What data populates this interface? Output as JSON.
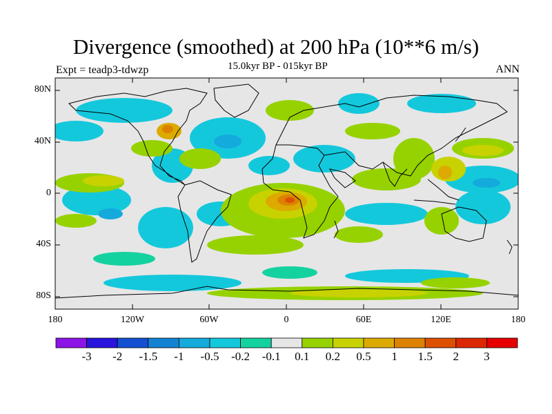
{
  "title": "Divergence (smoothed) at 200 hPa (10**6 m/s)",
  "subtitle": "15.0kyr BP - 015kyr BP",
  "left_label": "Expt = teadp3-tdwzp",
  "right_label": "ANN",
  "map": {
    "projection": "cylindrical-equidistant",
    "lon_range": [
      -180,
      180
    ],
    "lat_range": [
      -90,
      90
    ],
    "y_ticks": [
      "80N",
      "40N",
      "0",
      "40S",
      "80S"
    ],
    "x_ticks": [
      "180",
      "120W",
      "60W",
      "0",
      "60E",
      "120E",
      "180"
    ],
    "background_color": "#e6e6e6"
  },
  "colorbar": {
    "labels": [
      "-3",
      "-2",
      "-1.5",
      "-1",
      "-0.5",
      "-0.2",
      "-0.1",
      "0.1",
      "0.2",
      "0.5",
      "1",
      "1.5",
      "2",
      "3"
    ],
    "colors": [
      "#8c14e6",
      "#2814dc",
      "#1450d2",
      "#1482d2",
      "#14aadc",
      "#14c8dc",
      "#14d2a0",
      "#e6e6e6",
      "#96d200",
      "#c8d200",
      "#dcaa00",
      "#dc8200",
      "#dc5000",
      "#dc2800",
      "#e60000"
    ]
  }
}
